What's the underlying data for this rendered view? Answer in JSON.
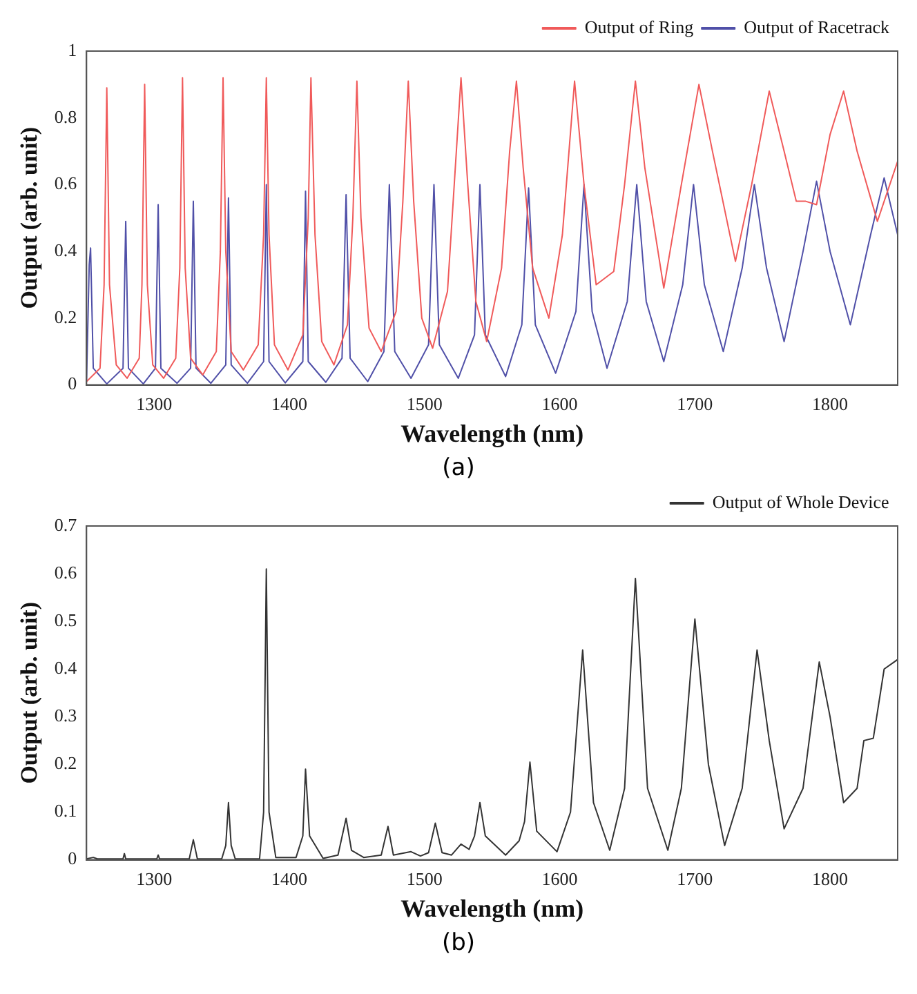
{
  "chart_data": [
    {
      "type": "line",
      "xlabel": "Wavelength (nm)",
      "ylabel": "Output (arb. unit)",
      "xlim": [
        1250,
        1850
      ],
      "xticks": [
        1300,
        1400,
        1500,
        1600,
        1700,
        1800
      ],
      "ylim": [
        0,
        1
      ],
      "yticks": [
        0,
        0.2,
        0.4,
        0.6,
        0.8,
        1
      ],
      "grid": false,
      "legend": "top right",
      "marker": "none",
      "line_style": "solid",
      "annotations": [
        "(a)"
      ],
      "series": [
        {
          "name": "Output of Ring",
          "color": "#f05a5a",
          "x": [
            1250,
            1260,
            1263,
            1265,
            1267,
            1272,
            1280,
            1289,
            1291,
            1293,
            1295,
            1299,
            1307,
            1316,
            1319,
            1321,
            1323,
            1327,
            1336,
            1346,
            1349,
            1351,
            1353,
            1357,
            1366,
            1377,
            1381,
            1383,
            1385,
            1389,
            1399,
            1410,
            1414,
            1416,
            1419,
            1424,
            1433,
            1443,
            1447,
            1450,
            1453,
            1459,
            1468,
            1479,
            1484,
            1488,
            1492,
            1498,
            1506,
            1517,
            1522,
            1527,
            1532,
            1538,
            1546,
            1557,
            1563,
            1568,
            1573,
            1580,
            1592,
            1602,
            1611,
            1618,
            1627,
            1640,
            1648,
            1656,
            1663,
            1677,
            1690,
            1703,
            1713,
            1730,
            1742,
            1755,
            1766,
            1775,
            1782,
            1790,
            1800,
            1810,
            1820,
            1835,
            1850
          ],
          "values": [
            0.01,
            0.05,
            0.3,
            0.89,
            0.3,
            0.06,
            0.02,
            0.08,
            0.3,
            0.9,
            0.3,
            0.06,
            0.02,
            0.08,
            0.35,
            0.92,
            0.35,
            0.08,
            0.03,
            0.1,
            0.4,
            0.92,
            0.4,
            0.1,
            0.045,
            0.12,
            0.45,
            0.92,
            0.45,
            0.12,
            0.045,
            0.15,
            0.5,
            0.92,
            0.45,
            0.13,
            0.06,
            0.18,
            0.5,
            0.91,
            0.5,
            0.17,
            0.1,
            0.22,
            0.55,
            0.91,
            0.55,
            0.2,
            0.11,
            0.28,
            0.6,
            0.92,
            0.6,
            0.25,
            0.13,
            0.35,
            0.7,
            0.91,
            0.65,
            0.35,
            0.2,
            0.45,
            0.91,
            0.6,
            0.3,
            0.34,
            0.6,
            0.91,
            0.65,
            0.29,
            0.6,
            0.9,
            0.7,
            0.37,
            0.6,
            0.88,
            0.7,
            0.55,
            0.55,
            0.54,
            0.75,
            0.88,
            0.7,
            0.49,
            0.67
          ]
        },
        {
          "name": "Output of Racetrack",
          "color": "#5050a8",
          "x": [
            1250,
            1252,
            1253,
            1255,
            1265,
            1277,
            1279,
            1281,
            1292,
            1301,
            1303,
            1305,
            1317,
            1327,
            1329,
            1331,
            1342,
            1353,
            1355,
            1357,
            1369,
            1381,
            1383,
            1385,
            1397,
            1410,
            1412,
            1414,
            1427,
            1439,
            1442,
            1445,
            1458,
            1470,
            1474,
            1478,
            1490,
            1503,
            1507,
            1511,
            1525,
            1537,
            1541,
            1545,
            1560,
            1572,
            1577,
            1582,
            1597,
            1612,
            1618,
            1624,
            1635,
            1650,
            1657,
            1664,
            1677,
            1691,
            1699,
            1707,
            1721,
            1735,
            1744,
            1753,
            1766,
            1780,
            1790,
            1800,
            1815,
            1830,
            1840,
            1850
          ],
          "values": [
            0.01,
            0.36,
            0.41,
            0.05,
            0.003,
            0.05,
            0.49,
            0.05,
            0.003,
            0.05,
            0.54,
            0.05,
            0.005,
            0.05,
            0.55,
            0.05,
            0.005,
            0.06,
            0.56,
            0.06,
            0.005,
            0.07,
            0.6,
            0.07,
            0.006,
            0.07,
            0.58,
            0.07,
            0.008,
            0.08,
            0.57,
            0.08,
            0.01,
            0.1,
            0.6,
            0.1,
            0.02,
            0.12,
            0.6,
            0.12,
            0.02,
            0.15,
            0.6,
            0.15,
            0.025,
            0.18,
            0.59,
            0.18,
            0.035,
            0.22,
            0.6,
            0.22,
            0.05,
            0.25,
            0.6,
            0.25,
            0.07,
            0.3,
            0.6,
            0.3,
            0.1,
            0.35,
            0.6,
            0.35,
            0.13,
            0.4,
            0.61,
            0.4,
            0.18,
            0.45,
            0.62,
            0.45
          ]
        }
      ]
    },
    {
      "type": "line",
      "xlabel": "Wavelength (nm)",
      "ylabel": "Output (arb. unit)",
      "xlim": [
        1250,
        1850
      ],
      "xticks": [
        1300,
        1400,
        1500,
        1600,
        1700,
        1800
      ],
      "ylim": [
        0,
        0.7
      ],
      "yticks": [
        0,
        0.1,
        0.2,
        0.3,
        0.4,
        0.5,
        0.6,
        0.7
      ],
      "grid": false,
      "legend": "top right",
      "marker": "none",
      "line_style": "solid",
      "annotations": [
        "(b)"
      ],
      "series": [
        {
          "name": "Output of Whole Device",
          "color": "#333333",
          "x": [
            1250,
            1255,
            1258,
            1277,
            1278,
            1279,
            1302,
            1303,
            1304,
            1326,
            1329,
            1332,
            1350,
            1353,
            1355,
            1357,
            1360,
            1378,
            1381,
            1383,
            1385,
            1390,
            1405,
            1410,
            1412,
            1415,
            1425,
            1436,
            1442,
            1446,
            1455,
            1468,
            1473,
            1477,
            1490,
            1497,
            1503,
            1508,
            1513,
            1520,
            1527,
            1533,
            1537,
            1541,
            1545,
            1560,
            1570,
            1574,
            1578,
            1583,
            1598,
            1608,
            1617,
            1625,
            1637,
            1648,
            1656,
            1665,
            1680,
            1690,
            1700,
            1710,
            1722,
            1735,
            1746,
            1755,
            1766,
            1780,
            1792,
            1800,
            1810,
            1820,
            1825,
            1832,
            1840,
            1850
          ],
          "values": [
            0.002,
            0.005,
            0.002,
            0.002,
            0.013,
            0.002,
            0.002,
            0.01,
            0.002,
            0.002,
            0.042,
            0.002,
            0.002,
            0.03,
            0.12,
            0.03,
            0.002,
            0.002,
            0.1,
            0.61,
            0.1,
            0.005,
            0.005,
            0.05,
            0.19,
            0.05,
            0.003,
            0.01,
            0.087,
            0.02,
            0.005,
            0.01,
            0.07,
            0.01,
            0.017,
            0.008,
            0.015,
            0.077,
            0.015,
            0.01,
            0.033,
            0.022,
            0.05,
            0.12,
            0.05,
            0.01,
            0.04,
            0.08,
            0.205,
            0.06,
            0.017,
            0.1,
            0.44,
            0.12,
            0.02,
            0.15,
            0.59,
            0.15,
            0.02,
            0.15,
            0.505,
            0.2,
            0.03,
            0.15,
            0.44,
            0.25,
            0.065,
            0.15,
            0.415,
            0.3,
            0.12,
            0.15,
            0.25,
            0.255,
            0.4,
            0.42
          ]
        }
      ]
    }
  ]
}
